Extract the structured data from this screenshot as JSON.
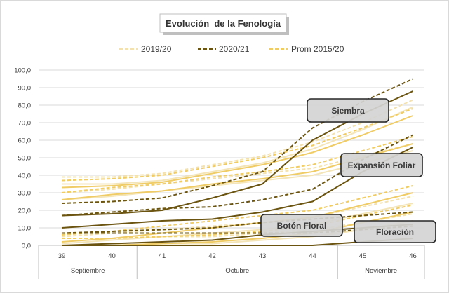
{
  "chart_data": {
    "type": "line",
    "title": "Evolución  de la Fenología",
    "categories": [
      "39",
      "40",
      "41",
      "42",
      "43",
      "44",
      "45",
      "46"
    ],
    "category_groups": [
      {
        "label": "Septiembre",
        "from": 0,
        "to": 1
      },
      {
        "label": "Octubre",
        "from": 2,
        "to": 5
      },
      {
        "label": "Noviembre",
        "from": 6,
        "to": 7
      }
    ],
    "ylim": [
      0,
      100
    ],
    "yticks": [
      "0,0",
      "10,0",
      "20,0",
      "30,0",
      "40,0",
      "50,0",
      "60,0",
      "70,0",
      "80,0",
      "90,0",
      "100,0"
    ],
    "grid": true,
    "legend_position": "top",
    "legend": [
      {
        "label": "2019/20",
        "color": "#f3e2b0",
        "dash": "dashed"
      },
      {
        "label": "2020/21",
        "color": "#6b5410",
        "dash": "dashed"
      },
      {
        "label": "Prom 2015/20",
        "color": "#f0cc66",
        "dash": "dashed"
      }
    ],
    "stages": [
      {
        "label": "Siembra",
        "series": [
          {
            "style": "2019/20",
            "values": [
              35,
              35,
              37,
              42,
              47,
              55,
              66,
              79
            ]
          },
          {
            "style": "2020/21",
            "values": [
              17,
              18,
              20,
              27,
              35,
              60,
              75,
              88
            ]
          },
          {
            "style": "Prom 2015/20",
            "values": [
              33,
              34,
              36,
              41,
              46,
              53,
              63,
              74
            ]
          }
        ]
      },
      {
        "label": "Expansión Foliar",
        "series": [
          {
            "style": "2019/20",
            "values": [
              26,
              28,
              31,
              34,
              37,
              40,
              47,
              54
            ]
          },
          {
            "style": "2020/21",
            "values": [
              10,
              12,
              14,
              15,
              19,
              25,
              42,
              56
            ]
          },
          {
            "style": "Prom 2015/20",
            "values": [
              26,
              29,
              31,
              35,
              38,
              42,
              50,
              58
            ]
          }
        ]
      },
      {
        "label": "Botón Floral",
        "series": [
          {
            "style": "2019/20",
            "values": [
              1,
              3,
              5,
              7,
              9,
              12,
              18,
              24
            ]
          },
          {
            "style": "2020/21",
            "values": [
              0,
              1,
              2,
              3,
              6,
              8,
              10,
              12
            ]
          },
          {
            "style": "Prom 2015/20",
            "values": [
              2,
              4,
              7,
              10,
              13,
              16,
              23,
              30
            ]
          }
        ]
      },
      {
        "label": "Floración",
        "series": [
          {
            "style": "2019/20",
            "values": [
              0,
              0,
              1,
              1,
              3,
              5,
              9,
              14
            ]
          },
          {
            "style": "2020/21",
            "values": [
              0,
              0,
              0,
              0,
              0,
              0,
              2,
              4
            ]
          },
          {
            "style": "Prom 2015/20",
            "values": [
              0,
              0,
              1,
              2,
              4,
              7,
              13,
              19
            ]
          }
        ]
      }
    ]
  }
}
